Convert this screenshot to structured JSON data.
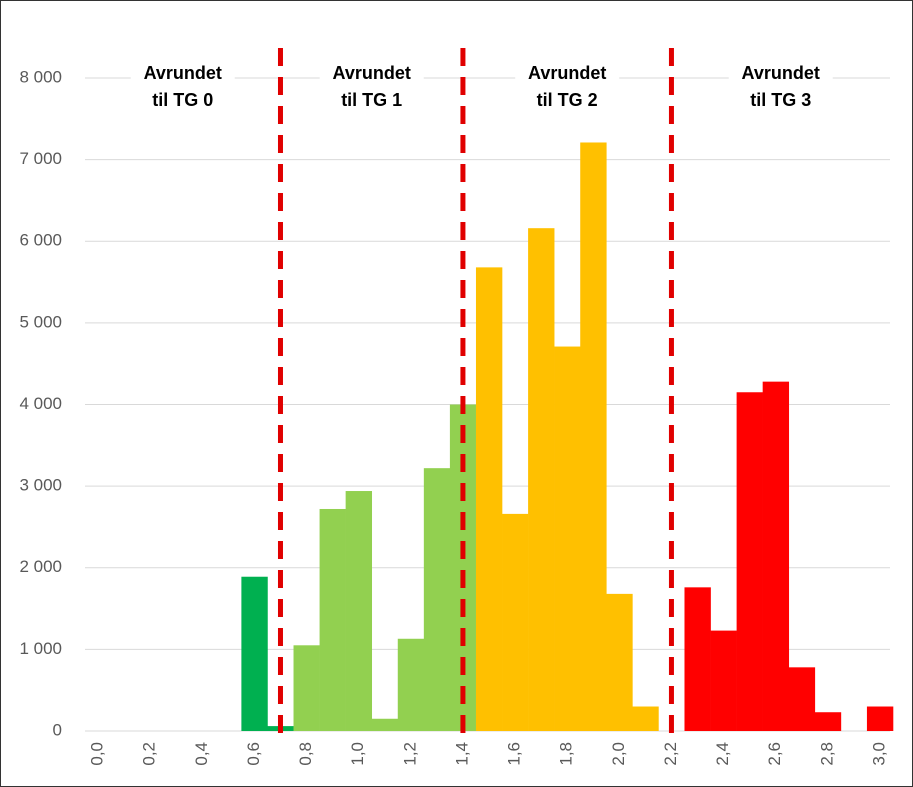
{
  "chart_data": {
    "type": "bar",
    "categories": [
      "0,0",
      null,
      "0,2",
      null,
      "0,4",
      null,
      "0,6",
      null,
      "0,8",
      null,
      "1,0",
      null,
      "1,2",
      null,
      "1,4",
      null,
      "1,6",
      null,
      "1,8",
      null,
      "2,0",
      null,
      "2,2",
      null,
      "2,4",
      null,
      "2,6",
      null,
      "2,8",
      null,
      "3,0"
    ],
    "values": [
      0,
      0,
      0,
      0,
      0,
      0,
      1890,
      60,
      1050,
      2720,
      2940,
      150,
      1130,
      3220,
      4000,
      5680,
      2660,
      6160,
      4710,
      7210,
      1680,
      300,
      0,
      1760,
      1230,
      4150,
      4280,
      780,
      230,
      0,
      300
    ],
    "colors": [
      "#00b050",
      "#00b050",
      "#00b050",
      "#00b050",
      "#00b050",
      "#00b050",
      "#00b050",
      "#00b050",
      "#92d050",
      "#92d050",
      "#92d050",
      "#92d050",
      "#92d050",
      "#92d050",
      "#92d050",
      "#ffc000",
      "#ffc000",
      "#ffc000",
      "#ffc000",
      "#ffc000",
      "#ffc000",
      "#ffc000",
      "#ff0000",
      "#ff0000",
      "#ff0000",
      "#ff0000",
      "#ff0000",
      "#ff0000",
      "#ff0000",
      "#ff0000",
      "#ff0000"
    ],
    "ylim": [
      0,
      8000
    ],
    "yticks": [
      0,
      {
        "value": 1000,
        "label": "1 000"
      },
      {
        "value": 2000,
        "label": "2 000"
      },
      {
        "value": 3000,
        "label": "3 000"
      },
      {
        "value": 4000,
        "label": "4 000"
      },
      {
        "value": 5000,
        "label": "5 000"
      },
      {
        "value": 6000,
        "label": "6 000"
      },
      {
        "value": 7000,
        "label": "7 000"
      },
      {
        "value": 8000,
        "label": "8 000"
      }
    ],
    "grid": true,
    "dividers": [
      7.5,
      14.5,
      22.5
    ],
    "divider_color": "#e00000",
    "annotations": [
      [
        "Avrundet",
        "til TG 0"
      ],
      [
        "Avrundet",
        "til TG 1"
      ],
      [
        "Avrundet",
        "til TG 2"
      ],
      [
        "Avrundet",
        "til TG 3"
      ]
    ]
  }
}
